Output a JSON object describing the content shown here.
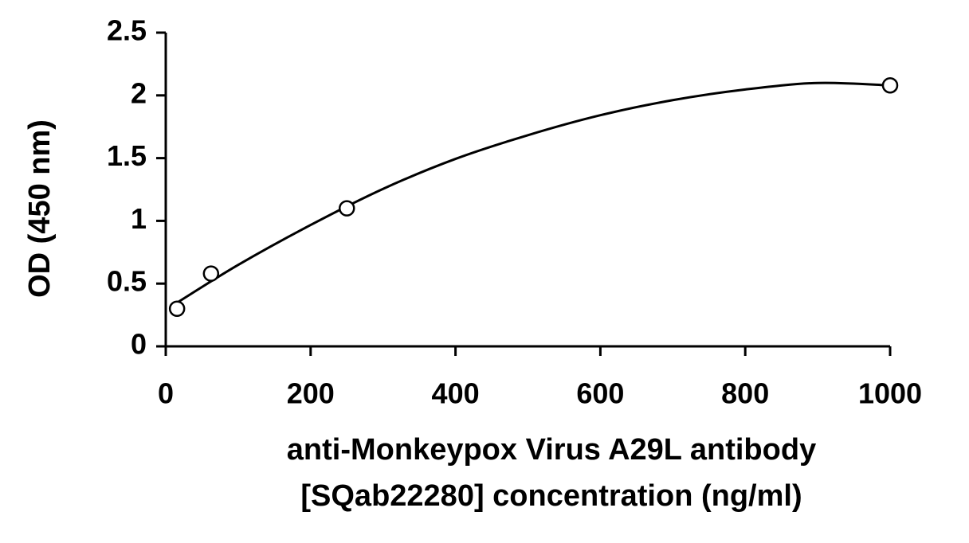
{
  "chart_data": {
    "type": "scatter",
    "x_label": [
      "anti-Monkeypox Virus A29L antibody",
      "[SQab22280] concentration (ng/ml)"
    ],
    "y_label": "OD (450 nm)",
    "x": [
      15.6,
      62.5,
      250,
      1000
    ],
    "values": [
      0.3,
      0.58,
      1.1,
      2.08
    ],
    "fit": {
      "x": [
        15.6,
        100,
        200,
        300,
        400,
        500,
        600,
        700,
        800,
        900,
        1000
      ],
      "values": [
        0.348,
        0.649,
        0.967,
        1.255,
        1.494,
        1.683,
        1.842,
        1.962,
        2.047,
        2.099,
        2.08
      ]
    },
    "color": "#000000",
    "xlim": [
      0,
      1000
    ],
    "xticks": [
      0,
      200,
      400,
      600,
      800,
      1000
    ],
    "ylim": [
      0,
      2.5
    ],
    "yticks": [
      0,
      0.5,
      1,
      1.5,
      2,
      2.5
    ],
    "grid": false
  }
}
